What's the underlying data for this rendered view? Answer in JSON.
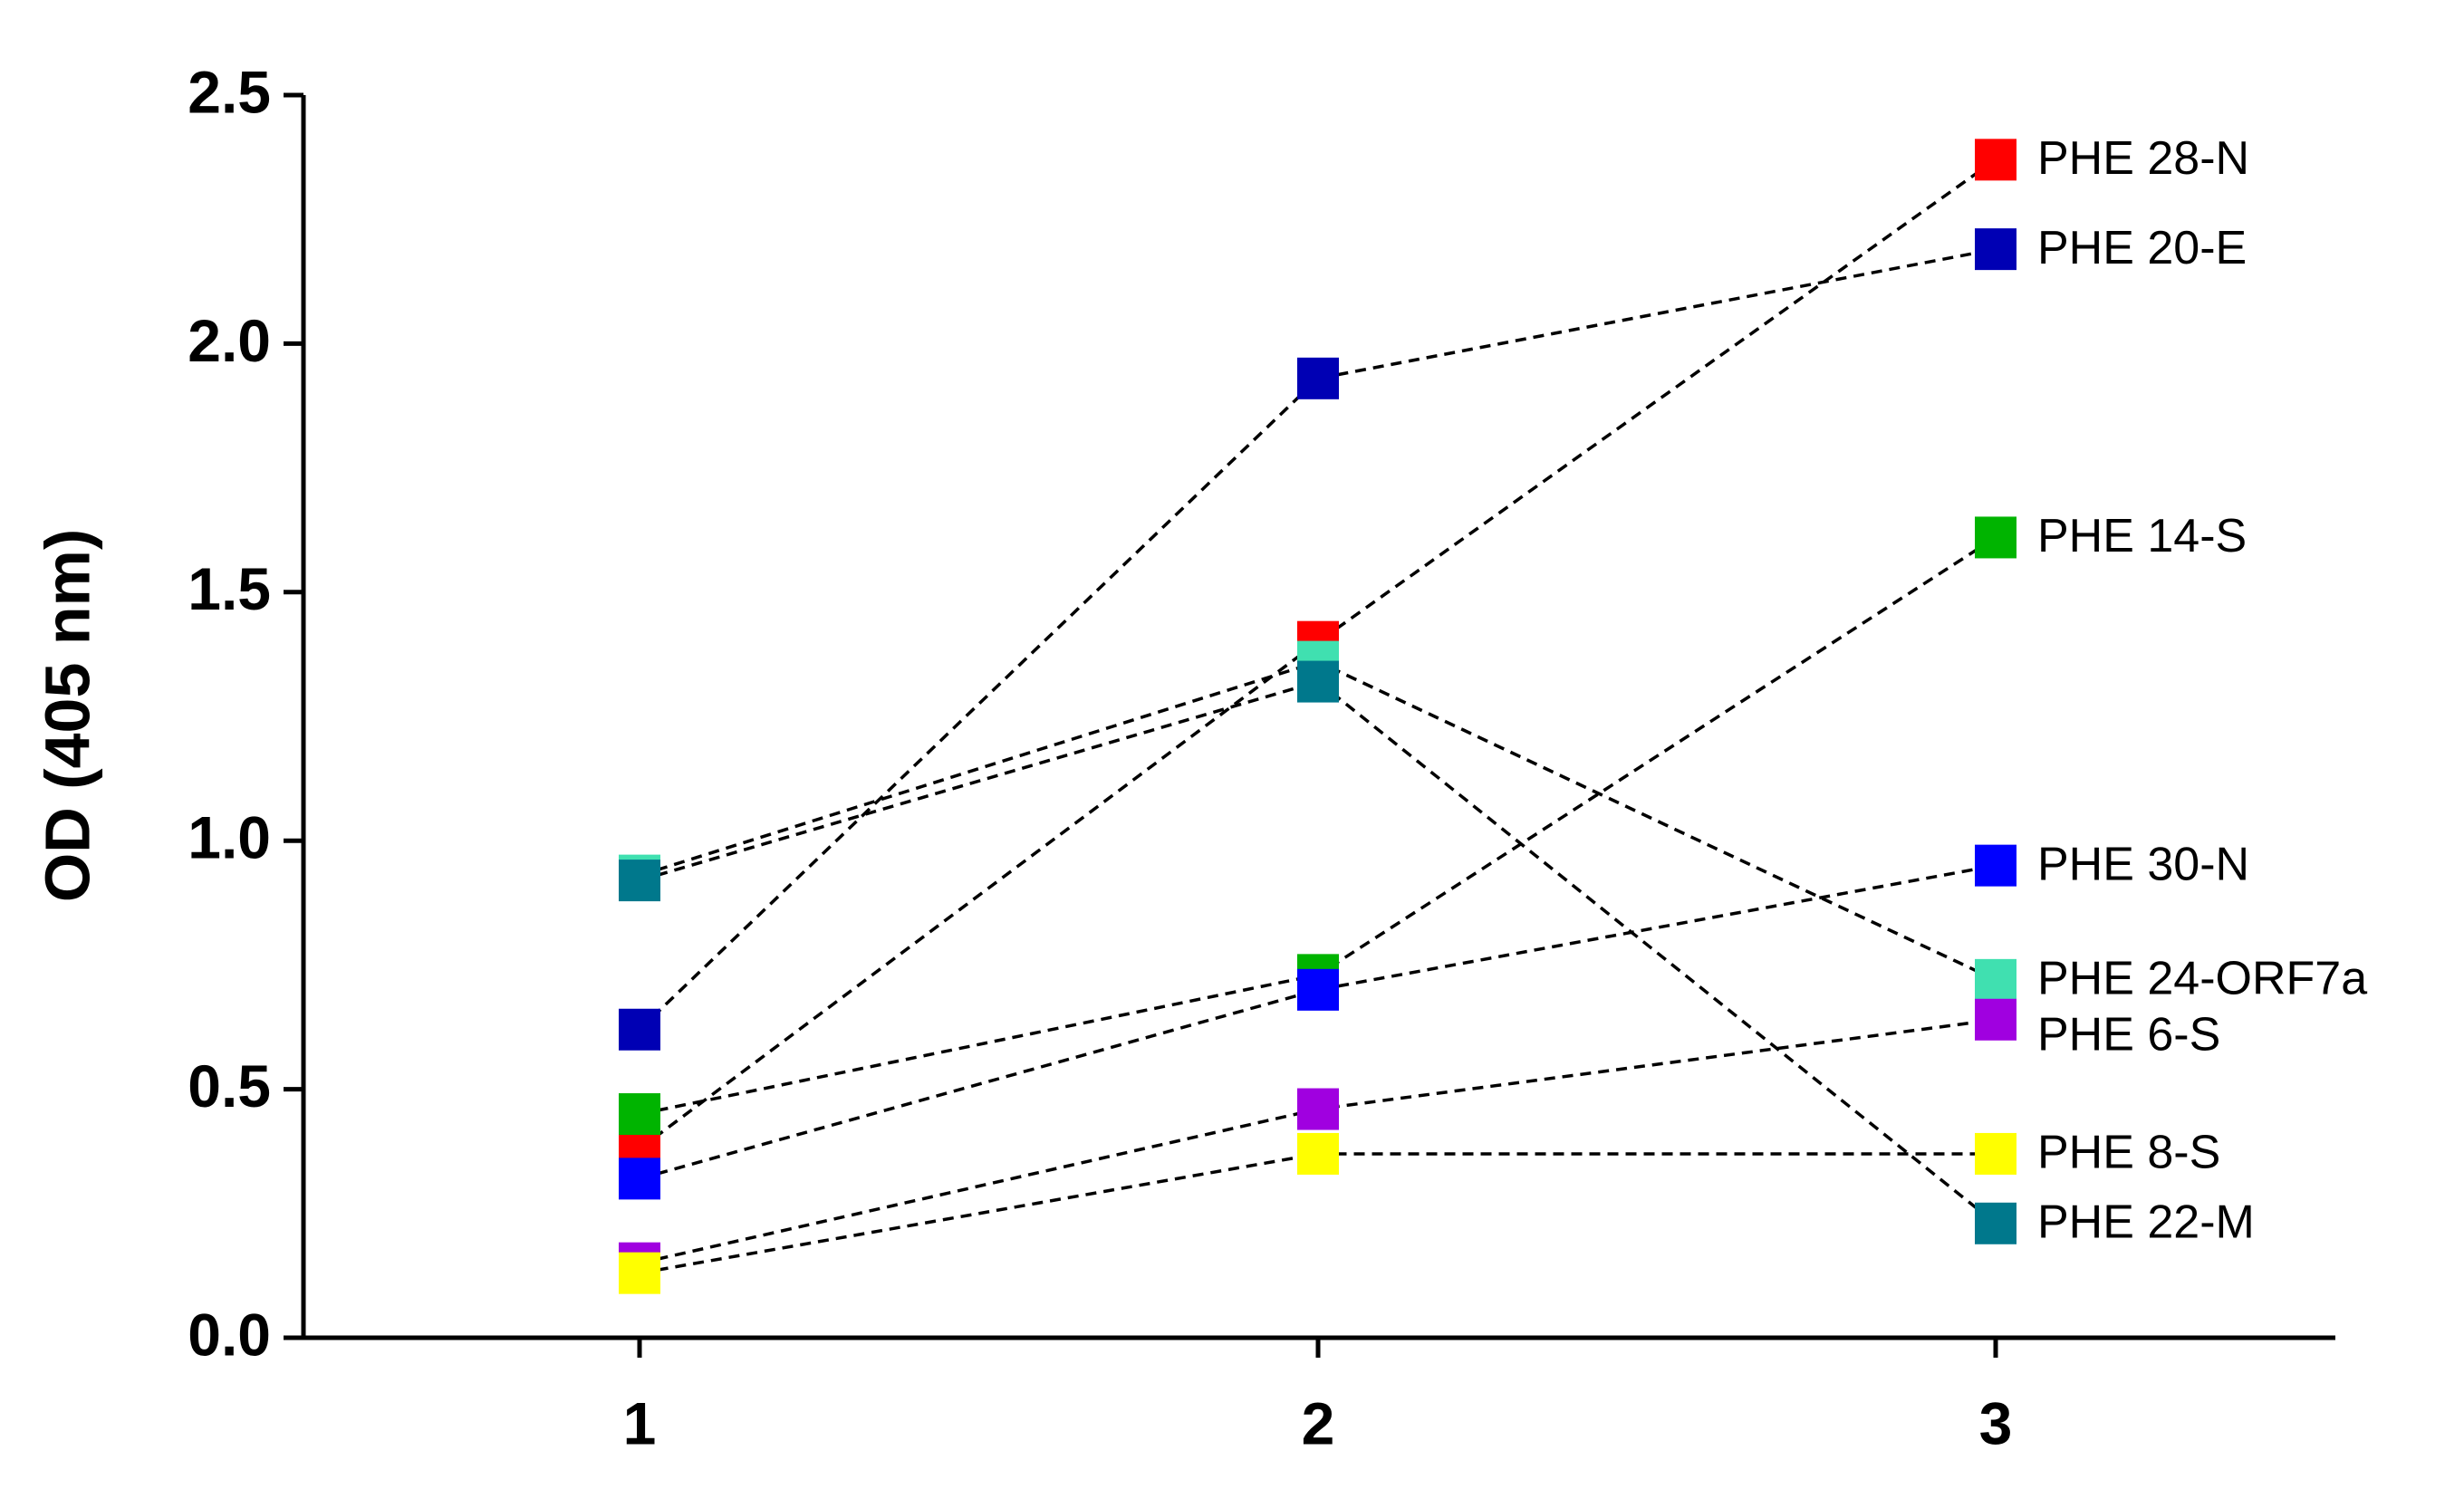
{
  "chart_data": {
    "type": "line",
    "y_label": "OD (405 nm)",
    "categories": [
      "1",
      "2",
      "3"
    ],
    "ylim": [
      0,
      2.5
    ],
    "yticks": [
      {
        "value": 0,
        "label": "0.0"
      },
      0.5,
      {
        "value": 1,
        "label": "1.0"
      },
      1.5,
      {
        "value": 2,
        "label": "2.0"
      },
      2.5
    ],
    "line_color": "#000000",
    "line_style": "dashed",
    "grid": false,
    "series": [
      {
        "name": "PHE 28-N",
        "color": "#ff0000",
        "values": [
          0.38,
          1.4,
          2.37
        ]
      },
      {
        "name": "PHE 20-E",
        "color": "#0000b4",
        "values": [
          0.62,
          1.93,
          2.19
        ]
      },
      {
        "name": "PHE 14-S",
        "color": "#00b400",
        "values": [
          0.45,
          0.73,
          1.61
        ]
      },
      {
        "name": "PHE 30-N",
        "color": "#0000ff",
        "values": [
          0.32,
          0.7,
          0.95
        ]
      },
      {
        "name": "PHE 24-ORF7a",
        "color": "#40e0b0",
        "values": [
          0.93,
          1.36,
          0.72
        ]
      },
      {
        "name": "PHE 6-S",
        "color": "#a000e0",
        "values": [
          0.15,
          0.46,
          0.64
        ]
      },
      {
        "name": "PHE 8-S",
        "color": "#ffff00",
        "values": [
          0.13,
          0.37,
          0.37
        ]
      },
      {
        "name": "PHE 22-M",
        "color": "#00788c",
        "values": [
          0.92,
          1.32,
          0.23
        ]
      }
    ]
  }
}
